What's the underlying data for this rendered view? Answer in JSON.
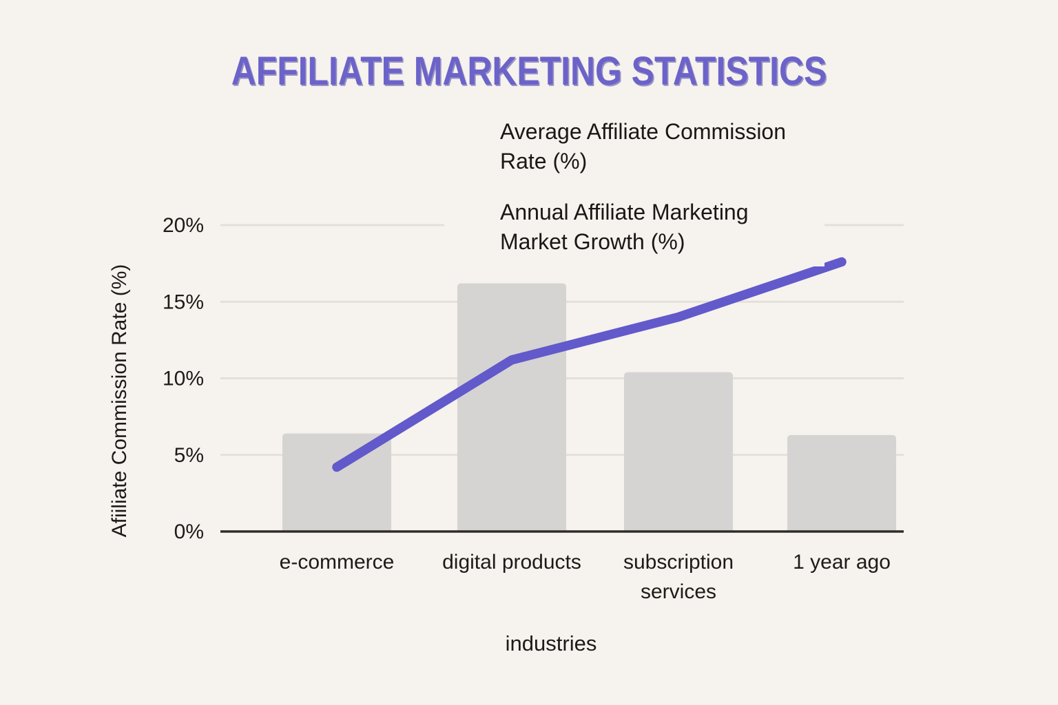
{
  "title": "AFFILIATE MARKETING STATISTICS",
  "colors": {
    "background": "#f6f2ed",
    "title": "#6b63c9",
    "bar": "#d5d4d2",
    "line": "#6259cb",
    "gridline": "#e3e0da",
    "axis": "#2f2d2a",
    "text": "#1c1b19"
  },
  "legend": {
    "items": [
      {
        "label": "Average Affiliate Commission Rate (%)",
        "lines": [
          "Average Affiliate Commission",
          "Rate (%)"
        ],
        "swatch": "bar",
        "swatch_color": "#d5d4d2"
      },
      {
        "label": "Annual Affiliate Marketing Market Growth (%)",
        "lines": [
          "Annual Affiliate Marketing",
          "Market Growth (%)"
        ],
        "swatch": "line",
        "swatch_color": "#6259cb"
      }
    ]
  },
  "chart_data": {
    "type": "bar",
    "subtype": "bar-and-line combo",
    "categories": [
      "e-commerce",
      "digital products",
      "subscription services",
      "1 year ago"
    ],
    "tick_lines": [
      [
        "e-commerce"
      ],
      [
        "digital products"
      ],
      [
        "subscription",
        "services"
      ],
      [
        "1 year ago"
      ]
    ],
    "series": [
      {
        "name": "Average Affiliate Commission Rate (%)",
        "type": "bar",
        "values": [
          6.4,
          16.2,
          10.4,
          6.3
        ],
        "color": "#d5d4d2"
      },
      {
        "name": "Annual Affiliate Marketing Market Growth (%)",
        "type": "line",
        "values": [
          4.2,
          11.2,
          14.0,
          17.6
        ],
        "color": "#6259cb"
      }
    ],
    "xlabel": "industries",
    "ylabel": "Afiiliate Commission Rate (%)",
    "ylim": [
      0,
      20
    ],
    "yticks": [
      {
        "value": 0,
        "label": "0%"
      },
      {
        "value": 5,
        "label": "5%"
      },
      {
        "value": 10,
        "label": "10%"
      },
      {
        "value": 15,
        "label": "15%"
      },
      {
        "value": 20,
        "label": "20%"
      }
    ],
    "grid": true,
    "legend_position": "top-center"
  }
}
